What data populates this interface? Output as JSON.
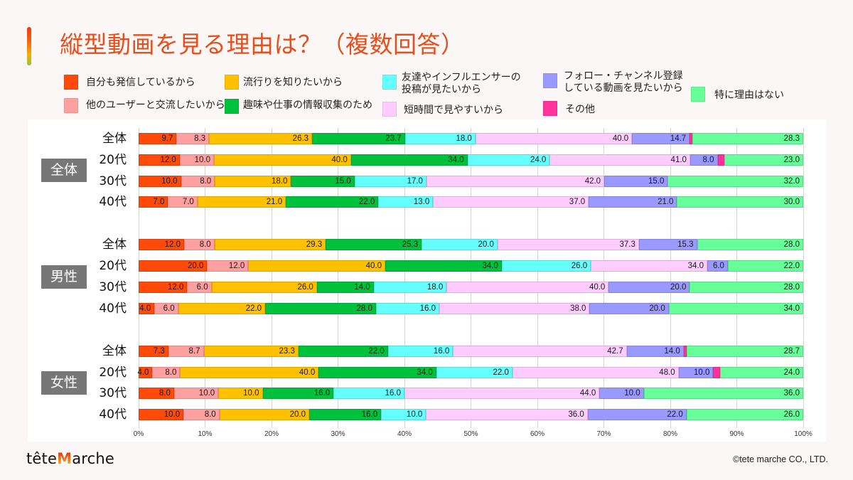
{
  "footer": {
    "logo": {
      "part1": "tête",
      "part2": "M",
      "part3": "arche"
    },
    "copyright": "©tete marche CO., LTD."
  },
  "chart_data": {
    "type": "bar",
    "orientation": "horizontal",
    "stacked": "percent",
    "title": "縦型動画を見る理由は？（複数回答）",
    "xlabel": "",
    "ylabel": "",
    "xlim": [
      0,
      100
    ],
    "xticks": [
      "0%",
      "10%",
      "20%",
      "30%",
      "40%",
      "50%",
      "60%",
      "70%",
      "80%",
      "90%",
      "100%"
    ],
    "grid": true,
    "legend_position": "top",
    "categories": [
      "全体",
      "20代",
      "30代",
      "40代",
      "全体",
      "20代",
      "30代",
      "40代",
      "全体",
      "20代",
      "30代",
      "40代"
    ],
    "category_groups": [
      {
        "label": "全体",
        "start": 0,
        "count": 4
      },
      {
        "label": "男性",
        "start": 4,
        "count": 4
      },
      {
        "label": "女性",
        "start": 8,
        "count": 4
      }
    ],
    "series": [
      {
        "name": "自分も発信しているから",
        "color": "#ff4a0a",
        "labeled": true,
        "values": [
          9.7,
          12.0,
          10.0,
          7.0,
          12.0,
          20.0,
          12.0,
          4.0,
          7.3,
          4.0,
          8.0,
          10.0
        ]
      },
      {
        "name": "他のユーザーと交流したいから",
        "color": "#ffa0a0",
        "labeled": true,
        "values": [
          8.3,
          10.0,
          8.0,
          7.0,
          8.0,
          12.0,
          6.0,
          6.0,
          8.7,
          8.0,
          10.0,
          8.0
        ]
      },
      {
        "name": "流行りを知りたいから",
        "color": "#ffc000",
        "labeled": true,
        "values": [
          26.3,
          40.0,
          18.0,
          21.0,
          29.3,
          40.0,
          26.0,
          22.0,
          23.3,
          40.0,
          10.0,
          20.0
        ]
      },
      {
        "name": "趣味や仕事の情報収集のため",
        "color": "#00c13b",
        "labeled": true,
        "values": [
          23.7,
          34.0,
          15.0,
          22.0,
          25.3,
          34.0,
          14.0,
          28.0,
          22.0,
          34.0,
          16.0,
          16.0
        ]
      },
      {
        "name": "友達やインフルエンサーの\n投稿が見たいから",
        "color": "#66ffff",
        "labeled": true,
        "values": [
          18.0,
          24.0,
          17.0,
          13.0,
          20.0,
          26.0,
          18.0,
          16.0,
          16.0,
          22.0,
          16.0,
          10.0
        ]
      },
      {
        "name": "短時間で見やすいから",
        "color": "#ffccff",
        "labeled": true,
        "values": [
          40.0,
          41.0,
          42.0,
          37.0,
          37.3,
          34.0,
          40.0,
          38.0,
          42.7,
          48.0,
          44.0,
          36.0
        ]
      },
      {
        "name": "フォロー・チャンネル登録\nしている動画を見たいから",
        "color": "#9999ff",
        "labeled": true,
        "values": [
          14.7,
          8.0,
          15.0,
          21.0,
          15.3,
          6.0,
          20.0,
          20.0,
          14.0,
          10.0,
          10.0,
          22.0
        ]
      },
      {
        "name": "その他",
        "color": "#ff3399",
        "labeled": false,
        "values": [
          0.7,
          2.0,
          0,
          0,
          0,
          0,
          0,
          0,
          0.7,
          2.0,
          0,
          0
        ]
      },
      {
        "name": "特に理由はない",
        "color": "#66ff99",
        "labeled": true,
        "values": [
          28.3,
          23.0,
          32.0,
          30.0,
          28.0,
          22.0,
          28.0,
          34.0,
          28.7,
          24.0,
          36.0,
          26.0
        ]
      }
    ]
  }
}
